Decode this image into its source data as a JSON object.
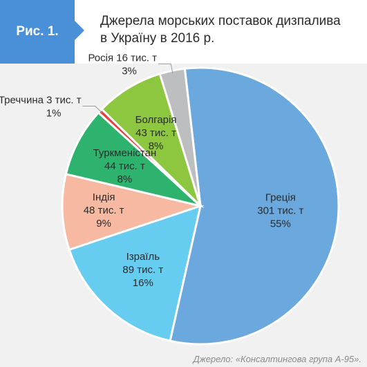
{
  "badge": {
    "label": "Рис. 1."
  },
  "title": {
    "line1": "Джерела морських поставок дизпалива",
    "line2": "в Україну в 2016 р."
  },
  "chart_data": {
    "type": "pie",
    "title": "Джерела морських поставок дизпалива в Україну в 2016 р.",
    "slices": [
      {
        "name": "Греція",
        "value": 301,
        "value_label": "301 тис. т",
        "percent_label": "55%",
        "color": "#6aa8dd",
        "text_color": "#2b2b2b"
      },
      {
        "name": "Ізраїль",
        "value": 89,
        "value_label": "89 тис. т",
        "percent_label": "16%",
        "color": "#66ccf0",
        "text_color": "#2b2b2b"
      },
      {
        "name": "Індія",
        "value": 48,
        "value_label": "48 тис. т",
        "percent_label": "9%",
        "color": "#f7b9a1",
        "text_color": "#2b2b2b"
      },
      {
        "name": "Туркменістан",
        "value": 44,
        "value_label": "44 тис. т",
        "percent_label": "8%",
        "color": "#2db36e",
        "text_color": "#2b2b2b"
      },
      {
        "name": "Треччина",
        "value": 3,
        "value_label": "3 тис. т",
        "percent_label": "1%",
        "color": "#e8413c",
        "text_color": "#2b2b2b"
      },
      {
        "name": "Болгарія",
        "value": 43,
        "value_label": "43 тис. т",
        "percent_label": "8%",
        "color": "#8dc63f",
        "text_color": "#2b2b2b"
      },
      {
        "name": "Росія",
        "value": 16,
        "value_label": "16 тис. т",
        "percent_label": "3%",
        "color": "#bcbec0",
        "text_color": "#2b2b2b"
      }
    ]
  },
  "source": "Джерело: «Консалтингова група А-95»."
}
